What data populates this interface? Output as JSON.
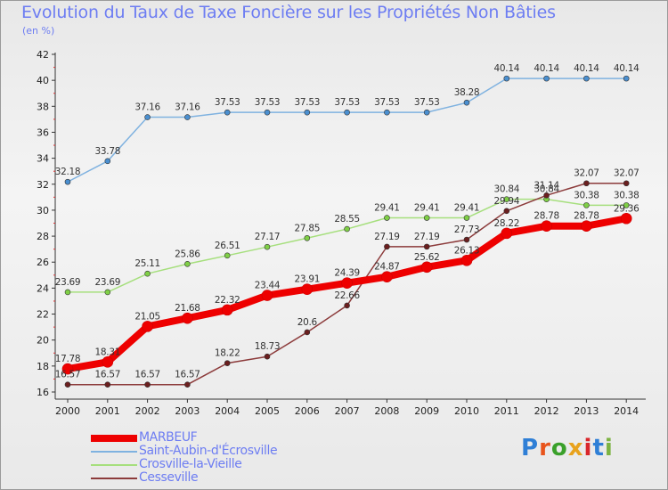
{
  "title": "Evolution du Taux de Taxe Foncière sur les Propriétés Non Bâties",
  "subtitle": "(en %)",
  "logo": {
    "text": "Proxiti",
    "colors": [
      "#2f7fd6",
      "#e8541c",
      "#3aa02a",
      "#e8a21c",
      "#d9262b",
      "#2f7fd6",
      "#7cb342"
    ]
  },
  "chart_data": {
    "type": "line",
    "title": "Evolution du Taux de Taxe Foncière sur les Propriétés Non Bâties",
    "ylabel": "(en %)",
    "xlabel": "",
    "ylim": [
      16,
      42
    ],
    "yticks": [
      16,
      18,
      20,
      22,
      24,
      26,
      28,
      30,
      32,
      34,
      36,
      38,
      40,
      42
    ],
    "categories": [
      "2000",
      "2001",
      "2002",
      "2003",
      "2004",
      "2005",
      "2006",
      "2007",
      "2008",
      "2009",
      "2010",
      "2011",
      "2012",
      "2013",
      "2014"
    ],
    "series": [
      {
        "name": "MARBEUF",
        "color": "#ee0000",
        "dot": "#ee0000",
        "width": 8,
        "values": [
          17.78,
          18.31,
          21.05,
          21.68,
          22.32,
          23.44,
          23.91,
          24.39,
          24.87,
          25.62,
          26.13,
          28.22,
          28.78,
          28.78,
          29.36
        ]
      },
      {
        "name": "Saint-Aubin-d'Écrosville",
        "color": "#7fb2e0",
        "dot": "#4a8fd0",
        "width": 1.5,
        "values": [
          32.18,
          33.78,
          37.16,
          37.16,
          37.53,
          37.53,
          37.53,
          37.53,
          37.53,
          37.53,
          38.28,
          40.14,
          40.14,
          40.14,
          40.14
        ]
      },
      {
        "name": "Crosville-la-Vieille",
        "color": "#a6df7d",
        "dot": "#7fcf46",
        "width": 1.5,
        "values": [
          23.69,
          23.69,
          25.11,
          25.86,
          26.51,
          27.17,
          27.85,
          28.55,
          29.41,
          29.41,
          29.41,
          30.84,
          30.84,
          30.38,
          30.38
        ]
      },
      {
        "name": "Cesseville",
        "color": "#8c3b3b",
        "dot": "#6b1f1f",
        "width": 1.5,
        "values": [
          16.57,
          16.57,
          16.57,
          16.57,
          18.22,
          18.73,
          20.6,
          22.66,
          27.19,
          27.19,
          27.73,
          29.94,
          31.14,
          32.07,
          32.07
        ]
      }
    ],
    "legend_position": "bottom-left",
    "grid": false
  }
}
